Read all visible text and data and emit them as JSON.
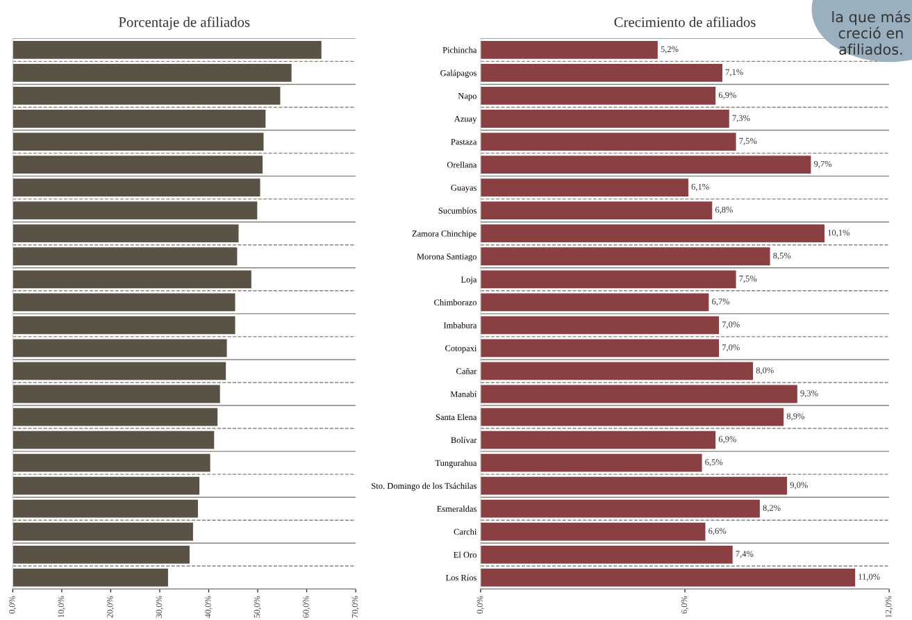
{
  "chart_data": [
    {
      "type": "bar",
      "orientation": "horizontal",
      "title": "Porcentaje de afiliados",
      "categories": [
        null,
        null,
        null,
        null,
        null,
        null,
        null,
        null,
        null,
        null,
        null,
        null,
        null,
        null,
        null,
        null,
        null,
        null,
        null,
        null,
        null,
        null,
        null,
        null
      ],
      "series": [
        {
          "color": "#5a5244",
          "values": [
            63.0,
            56.9,
            54.6,
            51.6,
            51.2,
            51.0,
            50.5,
            49.9,
            46.1,
            45.8,
            48.7,
            45.4,
            45.4,
            43.7,
            43.5,
            42.3,
            41.8,
            41.1,
            40.3,
            38.1,
            37.8,
            36.8,
            36.1,
            31.7
          ]
        }
      ],
      "xlim": [
        0,
        70
      ],
      "xticks": [
        {
          "value": 0,
          "label": "0,0%"
        },
        {
          "value": 10,
          "label": "10,0%"
        },
        {
          "value": 20,
          "label": "20,0%"
        },
        {
          "value": 30,
          "label": "30,0%"
        },
        {
          "value": 40,
          "label": "40,0%"
        },
        {
          "value": 50,
          "label": "50,0%"
        },
        {
          "value": 60,
          "label": "60,0%"
        },
        {
          "value": 70,
          "label": "70,0%"
        }
      ],
      "tick_labels": "x"
    },
    {
      "type": "bar",
      "orientation": "horizontal",
      "title": "Crecimiento de afiliados",
      "categories": [
        "Pichincha",
        "Galápagos",
        "Napo",
        "Azuay",
        "Pastaza",
        "Orellana",
        "Guayas",
        "Sucumbíos",
        "Zamora Chinchipe",
        "Morona Santiago",
        "Loja",
        "Chimborazo",
        "Imbabura",
        "Cotopaxi",
        "Cañar",
        "Manabí",
        "Santa Elena",
        "Bolívar",
        "Tungurahua",
        "Sto. Domingo de los Tsáchilas",
        "Esmeraldas",
        "Carchi",
        "El Oro",
        "Los Ríos"
      ],
      "series": [
        {
          "color": "#8a3f42",
          "values": [
            5.2,
            7.1,
            6.9,
            7.3,
            7.5,
            9.7,
            6.1,
            6.8,
            10.1,
            8.5,
            7.5,
            6.7,
            7.0,
            7.0,
            8.0,
            9.3,
            8.9,
            6.9,
            6.5,
            9.0,
            8.2,
            6.6,
            7.4,
            11.0
          ],
          "value_labels": [
            "5,2%",
            "7,1%",
            "6,9%",
            "7,3%",
            "7,5%",
            "9,7%",
            "6,1%",
            "6,8%",
            "10,1%",
            "8,5%",
            "7,5%",
            "6,7%",
            "7,0%",
            "7,0%",
            "8,0%",
            "9,3%",
            "8,9%",
            "6,9%",
            "6,5%",
            "9,0%",
            "8,2%",
            "6,6%",
            "7,4%",
            "11,0%"
          ]
        }
      ],
      "xlim": [
        0,
        12
      ],
      "xticks": [
        {
          "value": 0,
          "label": "0,0%"
        },
        {
          "value": 6,
          "label": "6,0%"
        },
        {
          "value": 12,
          "label": "12,0%"
        }
      ],
      "annotations": [
        "la que más creció en afiliados."
      ]
    }
  ]
}
